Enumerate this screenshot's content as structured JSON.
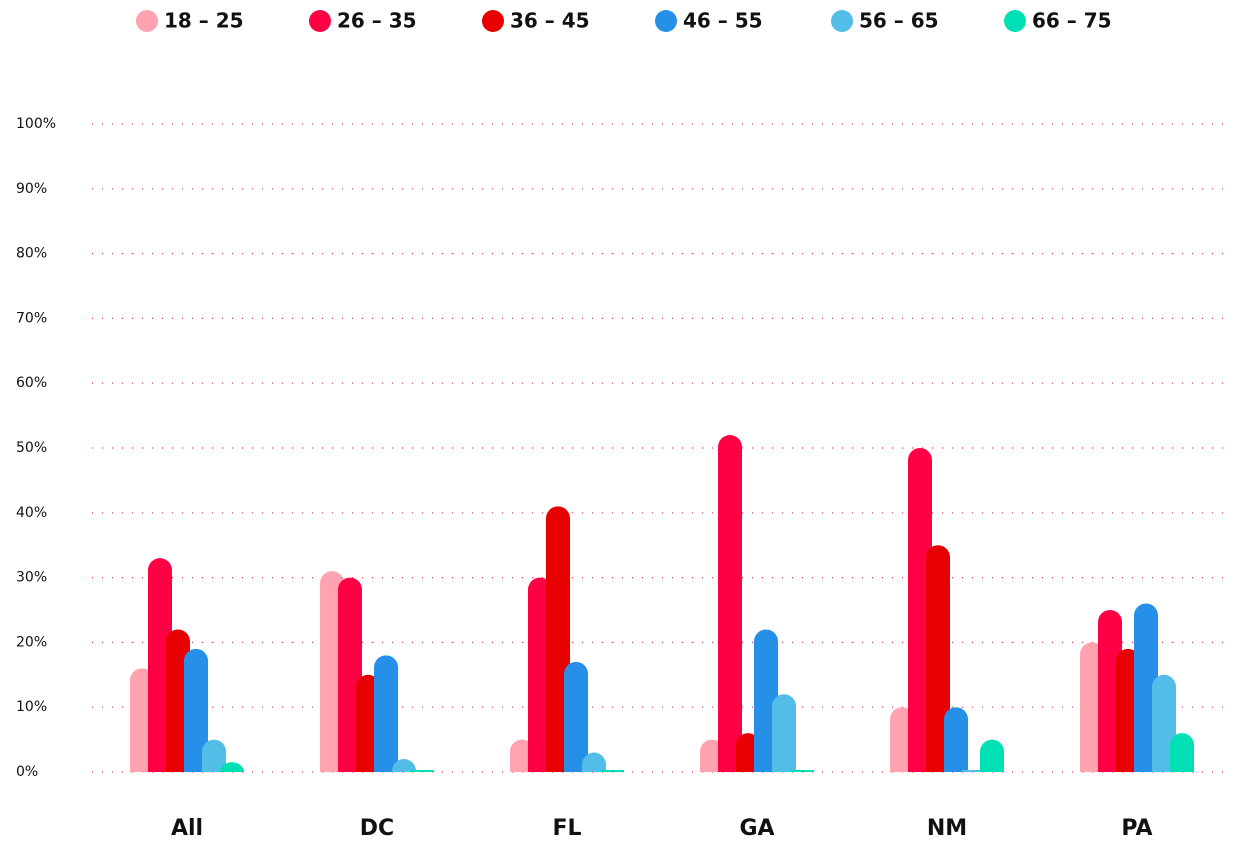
{
  "chart_data": {
    "type": "bar",
    "categories": [
      "All",
      "DC",
      "FL",
      "GA",
      "NM",
      "PA"
    ],
    "series": [
      {
        "name": "18 – 25",
        "color": "#ffa3b1",
        "values": [
          16,
          31,
          5,
          5,
          10,
          20
        ]
      },
      {
        "name": "26 – 35",
        "color": "#ff0044",
        "values": [
          33,
          30,
          30,
          52,
          50,
          25
        ]
      },
      {
        "name": "36 – 45",
        "color": "#e60000",
        "values": [
          22,
          15,
          41,
          6,
          35,
          19
        ]
      },
      {
        "name": "46 – 55",
        "color": "#2690e8",
        "values": [
          19,
          18,
          17,
          22,
          10,
          26
        ]
      },
      {
        "name": "56 – 65",
        "color": "#52bde6",
        "values": [
          5,
          2,
          3,
          12,
          0,
          15
        ]
      },
      {
        "name": "66 – 75",
        "color": "#00e0b4",
        "values": [
          1.5,
          0,
          0,
          0,
          5,
          6
        ]
      }
    ],
    "ylim": [
      0,
      100
    ],
    "yticks": [
      {
        "value": 0,
        "label": "0%"
      },
      {
        "value": 10,
        "label": "10%"
      },
      {
        "value": 20,
        "label": "20%"
      },
      {
        "value": 30,
        "label": "30%"
      },
      {
        "value": 40,
        "label": "40%"
      },
      {
        "value": 50,
        "label": "50%"
      },
      {
        "value": 60,
        "label": "60%"
      },
      {
        "value": 70,
        "label": "70%"
      },
      {
        "value": 80,
        "label": "80%"
      },
      {
        "value": 90,
        "label": "90%"
      },
      {
        "value": 100,
        "label": "100%"
      }
    ],
    "grid": true
  }
}
